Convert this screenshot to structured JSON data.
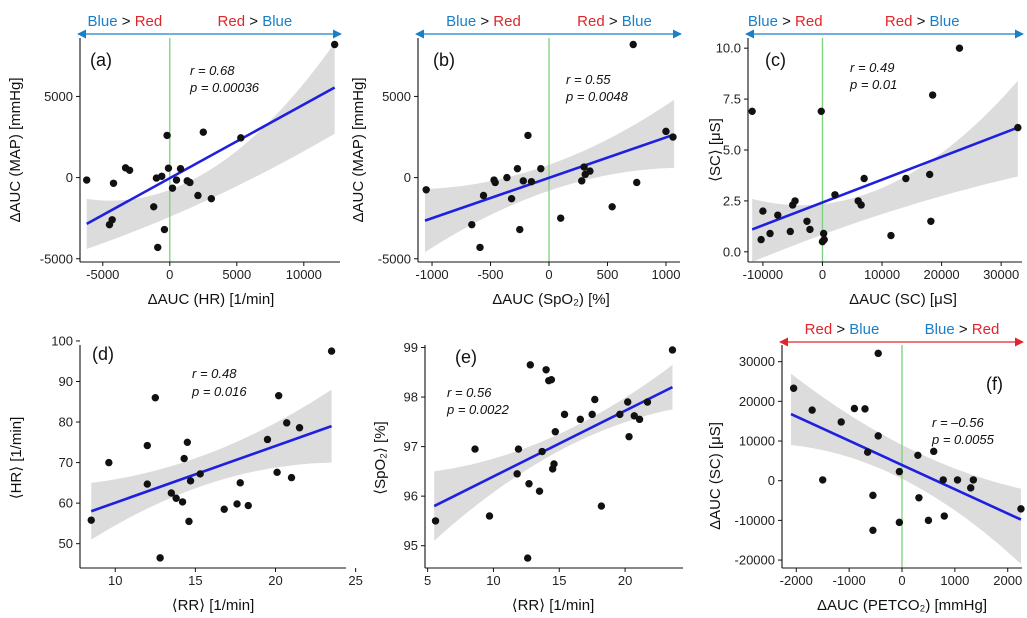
{
  "colors": {
    "blue_text": "#1a7fc9",
    "red_text": "#e0252b",
    "fit_line": "#1f1fe0",
    "band": "#d6d6d6",
    "zero_line": "#7bd17b",
    "point": "#111111"
  },
  "chart_data": [
    {
      "panel": "(a)",
      "type": "scatter",
      "xlabel": "ΔAUC (HR) [1/min]",
      "ylabel": "ΔAUC (MAP) [mmHg]",
      "r_text": "r = 0.68",
      "p_text": "p = 0.00036",
      "arrow_left": [
        "Blue",
        " > ",
        "Red"
      ],
      "arrow_right": [
        "Red",
        " > ",
        "Blue"
      ],
      "zero_line": true,
      "xlim": [
        -6700,
        12700
      ],
      "ylim": [
        -5200,
        8600
      ],
      "xticks": [
        -5000,
        0,
        5000,
        10000
      ],
      "xtick_labels": [
        "-5000",
        "0",
        "5000",
        "10000"
      ],
      "yticks": [
        -5000,
        0,
        5000
      ],
      "ytick_labels": [
        "-5000",
        "0",
        "5000"
      ],
      "fit": {
        "x0": -6200,
        "y0": -2850,
        "x1": 12300,
        "y1": 5550
      },
      "band": {
        "lo": [
          -4400,
          -1300,
          2700
        ],
        "hi": [
          -1300,
          500,
          8300
        ]
      },
      "points": [
        [
          -6200,
          -150
        ],
        [
          -4500,
          -2900
        ],
        [
          -4300,
          -2600
        ],
        [
          -4200,
          -350
        ],
        [
          -3300,
          600
        ],
        [
          -3000,
          450
        ],
        [
          -1200,
          -1800
        ],
        [
          -1000,
          -30
        ],
        [
          -900,
          -4300
        ],
        [
          -600,
          80
        ],
        [
          -400,
          -3200
        ],
        [
          -200,
          2600
        ],
        [
          -100,
          580
        ],
        [
          200,
          -650
        ],
        [
          500,
          -150
        ],
        [
          800,
          550
        ],
        [
          1300,
          -200
        ],
        [
          1500,
          -300
        ],
        [
          2100,
          -1100
        ],
        [
          2500,
          2800
        ],
        [
          3100,
          -1300
        ],
        [
          5300,
          2450
        ],
        [
          12300,
          8200
        ]
      ]
    },
    {
      "panel": "(b)",
      "type": "scatter",
      "xlabel": "ΔAUC (SpO₂) [%]",
      "ylabel": "ΔAUC (MAP) [mmHg]",
      "r_text": "r = 0.55",
      "p_text": "p = 0.0048",
      "arrow_left": [
        "Blue",
        " > ",
        "Red"
      ],
      "arrow_right": [
        "Red",
        " > ",
        "Blue"
      ],
      "zero_line": true,
      "xlim": [
        -1120,
        1120
      ],
      "ylim": [
        -5200,
        8600
      ],
      "xticks": [
        -1000,
        -500,
        0,
        500,
        1000
      ],
      "xtick_labels": [
        "-1000",
        "-500",
        "0",
        "500",
        "1000"
      ],
      "yticks": [
        -5000,
        0,
        5000
      ],
      "ytick_labels": [
        "-5000",
        "0",
        "5000"
      ],
      "fit": {
        "x0": -1060,
        "y0": -2650,
        "x1": 1070,
        "y1": 2650
      },
      "band": {
        "lo": [
          -4600,
          -800,
          600
        ],
        "hi": [
          -700,
          800,
          4800
        ]
      },
      "points": [
        [
          -1050,
          -750
        ],
        [
          -660,
          -2900
        ],
        [
          -590,
          -4300
        ],
        [
          -560,
          -1100
        ],
        [
          -470,
          -150
        ],
        [
          -460,
          -300
        ],
        [
          -360,
          0
        ],
        [
          -320,
          -1300
        ],
        [
          -270,
          550
        ],
        [
          -250,
          -3200
        ],
        [
          -220,
          -200
        ],
        [
          -180,
          2600
        ],
        [
          -150,
          -250
        ],
        [
          -70,
          550
        ],
        [
          100,
          -2500
        ],
        [
          280,
          -200
        ],
        [
          300,
          650
        ],
        [
          310,
          200
        ],
        [
          350,
          400
        ],
        [
          540,
          -1800
        ],
        [
          720,
          8200
        ],
        [
          750,
          -300
        ],
        [
          1000,
          2850
        ],
        [
          1060,
          2500
        ]
      ]
    },
    {
      "panel": "(c)",
      "type": "scatter",
      "xlabel": "ΔAUC (SC) [μS]",
      "ylabel": "⟨SC⟩ [μS]",
      "r_text": "r = 0.49",
      "p_text": "p = 0.01",
      "arrow_left": [
        "Blue",
        " > ",
        "Red"
      ],
      "arrow_right": [
        "Red",
        " > ",
        "Blue"
      ],
      "zero_line": true,
      "xlim": [
        -12500,
        33500
      ],
      "ylim": [
        -0.5,
        10.5
      ],
      "xticks": [
        -10000,
        0,
        10000,
        20000,
        30000
      ],
      "xtick_labels": [
        "-10000",
        "0",
        "10000",
        "20000",
        "30000"
      ],
      "yticks": [
        0,
        2.5,
        5,
        7.5,
        10
      ],
      "ytick_labels": [
        "0.0",
        "2.5",
        "5.0",
        "7.5",
        "10.0"
      ],
      "fit": {
        "x0": -11800,
        "y0": 1.1,
        "x1": 32800,
        "y1": 6.1
      },
      "band": {
        "lo": [
          -0.5,
          1.9,
          3.7
        ],
        "hi": [
          2.6,
          3.2,
          8.4
        ]
      },
      "points": [
        [
          -11800,
          6.9
        ],
        [
          -10300,
          0.6
        ],
        [
          -10000,
          2.0
        ],
        [
          -8800,
          0.9
        ],
        [
          -7500,
          1.8
        ],
        [
          -5400,
          1.0
        ],
        [
          -5000,
          2.3
        ],
        [
          -4600,
          2.5
        ],
        [
          -2600,
          1.5
        ],
        [
          -2100,
          1.1
        ],
        [
          -200,
          6.9
        ],
        [
          0,
          0.5
        ],
        [
          200,
          0.9
        ],
        [
          300,
          0.6
        ],
        [
          2100,
          2.8
        ],
        [
          6000,
          2.5
        ],
        [
          6500,
          2.3
        ],
        [
          7000,
          3.6
        ],
        [
          11500,
          0.8
        ],
        [
          14000,
          3.6
        ],
        [
          18000,
          3.8
        ],
        [
          18200,
          1.5
        ],
        [
          18500,
          7.7
        ],
        [
          23000,
          10.0
        ],
        [
          32800,
          6.1
        ]
      ]
    },
    {
      "panel": "(d)",
      "type": "scatter",
      "xlabel": "⟨RR⟩ [1/min]",
      "ylabel": "⟨HR⟩ [1/min]",
      "r_text": "r = 0.48",
      "p_text": "p = 0.016",
      "zero_line": false,
      "xlim": [
        7.8,
        24.4
      ],
      "ylim": [
        44,
        99
      ],
      "xticks": [
        10,
        15,
        20,
        25
      ],
      "xtick_labels": [
        "10",
        "15",
        "20",
        "25"
      ],
      "yticks": [
        50,
        60,
        70,
        80,
        90,
        100
      ],
      "ytick_labels": [
        "50",
        "60",
        "70",
        "80",
        "90",
        "100"
      ],
      "fit": {
        "x0": 8.5,
        "y0": 58.0,
        "x1": 23.5,
        "y1": 79.0
      },
      "band": {
        "lo": [
          51,
          65,
          70
        ],
        "hi": [
          65,
          72.5,
          88
        ]
      },
      "points": [
        [
          8.5,
          55.8
        ],
        [
          9.6,
          70.0
        ],
        [
          12.0,
          64.7
        ],
        [
          12.0,
          74.2
        ],
        [
          12.5,
          86.0
        ],
        [
          12.8,
          46.5
        ],
        [
          13.5,
          62.5
        ],
        [
          13.8,
          61.2
        ],
        [
          14.2,
          60.3
        ],
        [
          14.3,
          71.0
        ],
        [
          14.5,
          75.0
        ],
        [
          14.6,
          55.5
        ],
        [
          14.7,
          65.5
        ],
        [
          15.3,
          67.2
        ],
        [
          16.8,
          58.5
        ],
        [
          17.6,
          59.8
        ],
        [
          17.8,
          65.0
        ],
        [
          18.3,
          59.4
        ],
        [
          19.5,
          75.7
        ],
        [
          20.1,
          67.6
        ],
        [
          20.2,
          86.5
        ],
        [
          20.7,
          79.8
        ],
        [
          21.0,
          66.3
        ],
        [
          21.5,
          78.6
        ],
        [
          23.5,
          97.5
        ]
      ]
    },
    {
      "panel": "(e)",
      "type": "scatter",
      "xlabel": "⟨RR⟩ [1/min]",
      "ylabel": "⟨SpO₂⟩ [%]",
      "r_text": "r = 0.56",
      "p_text": "p = 0.0022",
      "zero_line": false,
      "xlim": [
        4.8,
        24.4
      ],
      "ylim": [
        94.55,
        99.05
      ],
      "xticks": [
        5,
        10,
        15,
        20
      ],
      "xtick_labels": [
        "5",
        "10",
        "15",
        "20"
      ],
      "yticks": [
        95,
        96,
        97,
        98,
        99
      ],
      "ytick_labels": [
        "95",
        "96",
        "97",
        "98",
        "99"
      ],
      "fit": {
        "x0": 5.5,
        "y0": 95.8,
        "x1": 23.6,
        "y1": 98.2
      },
      "band": {
        "lo": [
          95.1,
          96.85,
          97.75
        ],
        "hi": [
          96.5,
          97.2,
          98.65
        ]
      },
      "points": [
        [
          5.6,
          95.5
        ],
        [
          8.6,
          96.95
        ],
        [
          9.7,
          95.6
        ],
        [
          11.8,
          96.45
        ],
        [
          11.9,
          96.95
        ],
        [
          12.6,
          94.75
        ],
        [
          12.7,
          96.25
        ],
        [
          12.8,
          98.65
        ],
        [
          13.5,
          96.1
        ],
        [
          13.7,
          96.9
        ],
        [
          14.0,
          98.55
        ],
        [
          14.2,
          98.33
        ],
        [
          14.4,
          98.35
        ],
        [
          14.5,
          96.55
        ],
        [
          14.6,
          96.65
        ],
        [
          14.7,
          97.3
        ],
        [
          15.4,
          97.65
        ],
        [
          16.6,
          97.55
        ],
        [
          17.5,
          97.65
        ],
        [
          17.7,
          97.95
        ],
        [
          18.2,
          95.8
        ],
        [
          19.6,
          97.65
        ],
        [
          20.2,
          97.9
        ],
        [
          20.3,
          97.2
        ],
        [
          20.7,
          97.62
        ],
        [
          21.1,
          97.55
        ],
        [
          21.7,
          97.9
        ],
        [
          23.6,
          98.95
        ]
      ]
    },
    {
      "panel": "(f)",
      "type": "scatter",
      "xlabel": "ΔAUC (PETCO₂) [mmHg]",
      "ylabel": "ΔAUC (SC) [μS]",
      "r_text": "r = –0.56",
      "p_text": "p = 0.0055",
      "arrow_left": [
        "Red",
        " > ",
        "Blue"
      ],
      "arrow_right": [
        "Blue",
        " > ",
        "Red"
      ],
      "zero_line": true,
      "xlim": [
        -2270,
        2270
      ],
      "ylim": [
        -22000,
        34200
      ],
      "xticks": [
        -2000,
        -1000,
        0,
        1000,
        2000
      ],
      "xtick_labels": [
        "-2000",
        "-1000",
        "0",
        "1000",
        "2000"
      ],
      "yticks": [
        -20000,
        -10000,
        0,
        10000,
        20000,
        30000
      ],
      "ytick_labels": [
        "-20000",
        "-10000",
        "0",
        "10000",
        "20000",
        "30000"
      ],
      "fit": {
        "x0": -2100,
        "y0": 16800,
        "x1": 2250,
        "y1": -9800
      },
      "band": {
        "lo": [
          9000,
          0,
          -21000
        ],
        "hi": [
          27000,
          8500,
          -2000
        ]
      },
      "points": [
        [
          -2050,
          23300
        ],
        [
          -1700,
          17800
        ],
        [
          -1500,
          200
        ],
        [
          -1150,
          14800
        ],
        [
          -900,
          18200
        ],
        [
          -700,
          18100
        ],
        [
          -650,
          7200
        ],
        [
          -550,
          -3700
        ],
        [
          -550,
          -12500
        ],
        [
          -450,
          32100
        ],
        [
          -450,
          11300
        ],
        [
          -50,
          2300
        ],
        [
          -50,
          -10500
        ],
        [
          300,
          6400
        ],
        [
          320,
          -4300
        ],
        [
          500,
          -10000
        ],
        [
          600,
          7400
        ],
        [
          800,
          -8900
        ],
        [
          780,
          200
        ],
        [
          1050,
          200
        ],
        [
          1300,
          -1800
        ],
        [
          1350,
          200
        ],
        [
          2250,
          -7100
        ]
      ]
    }
  ]
}
